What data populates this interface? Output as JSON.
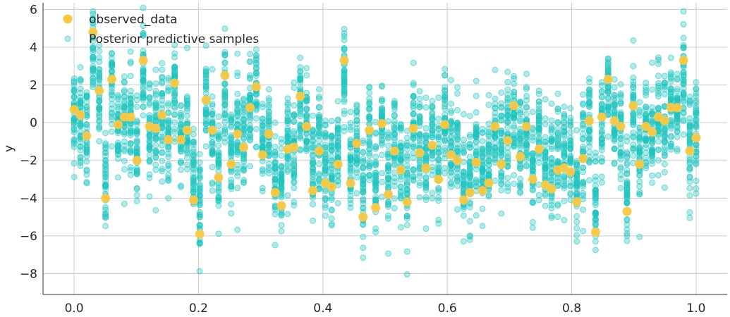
{
  "chart_data": {
    "type": "scatter",
    "title": "",
    "xlabel": "",
    "ylabel": "y",
    "xlim": [
      -0.05,
      1.05
    ],
    "ylim": [
      -9.1,
      6.35
    ],
    "xticks": [
      0.0,
      0.2,
      0.4,
      0.6,
      0.8,
      1.0
    ],
    "xtick_labels": [
      "0.0",
      "0.2",
      "0.4",
      "0.6",
      "0.8",
      "1.0"
    ],
    "yticks": [
      -8,
      -6,
      -4,
      -2,
      0,
      2,
      4,
      6
    ],
    "ytick_labels": [
      "−8",
      "−6",
      "−4",
      "−2",
      "0",
      "2",
      "4",
      "6"
    ],
    "grid": true,
    "legend": {
      "placement": "top-left",
      "entries": [
        "observed_data",
        "Posterior predictive samples"
      ]
    },
    "colors": {
      "observed": "#f9c845",
      "posterior": "#1fc4c0"
    },
    "observed": {
      "name": "observed_data",
      "x": [
        0.0,
        0.0101,
        0.0202,
        0.0303,
        0.0404,
        0.0505,
        0.0606,
        0.0707,
        0.0808,
        0.0909,
        0.101,
        0.1111,
        0.1212,
        0.1313,
        0.1414,
        0.1515,
        0.1616,
        0.1717,
        0.1818,
        0.1919,
        0.202,
        0.2121,
        0.2222,
        0.2323,
        0.2424,
        0.2525,
        0.2626,
        0.2727,
        0.2828,
        0.2929,
        0.303,
        0.3131,
        0.3232,
        0.3333,
        0.3434,
        0.3535,
        0.3636,
        0.3737,
        0.3838,
        0.3939,
        0.404,
        0.4141,
        0.4242,
        0.4343,
        0.4444,
        0.4545,
        0.4646,
        0.4747,
        0.4848,
        0.4949,
        0.5051,
        0.5152,
        0.5253,
        0.5354,
        0.5455,
        0.5556,
        0.5657,
        0.5758,
        0.5859,
        0.596,
        0.6061,
        0.6162,
        0.6263,
        0.6364,
        0.6465,
        0.6566,
        0.6667,
        0.6768,
        0.6869,
        0.697,
        0.7071,
        0.7172,
        0.7273,
        0.7374,
        0.7475,
        0.7576,
        0.7677,
        0.7778,
        0.7879,
        0.798,
        0.8081,
        0.8182,
        0.8283,
        0.8384,
        0.8485,
        0.8586,
        0.8687,
        0.8788,
        0.8889,
        0.899,
        0.9091,
        0.9192,
        0.9293,
        0.9394,
        0.9495,
        0.9596,
        0.9697,
        0.9798,
        0.9899,
        1.0
      ],
      "y": [
        0.7,
        0.4,
        -0.7,
        4.8,
        1.7,
        -4.0,
        2.3,
        -0.1,
        0.3,
        0.3,
        -2.0,
        3.3,
        -0.2,
        -0.3,
        0.4,
        -0.9,
        2.1,
        -0.9,
        -0.4,
        -4.1,
        -5.9,
        1.2,
        -0.4,
        -2.9,
        2.5,
        -2.2,
        -0.6,
        -1.3,
        0.8,
        1.9,
        -1.7,
        -0.6,
        -3.7,
        -4.4,
        -1.4,
        -1.3,
        1.4,
        -0.2,
        -3.6,
        -1.5,
        -3.2,
        -3.4,
        -2.2,
        3.3,
        -3.2,
        -1.1,
        -5.0,
        -0.4,
        -4.5,
        -0.05,
        -3.8,
        -1.5,
        -2.5,
        -4.2,
        -0.3,
        -1.6,
        -2.4,
        -1.2,
        -3.0,
        -0.1,
        -1.7,
        -2.0,
        -4.1,
        -3.7,
        -2.1,
        -3.6,
        -3.2,
        -0.2,
        -2.2,
        -0.95,
        0.9,
        -1.8,
        -0.2,
        -3.0,
        -1.4,
        -3.3,
        -3.5,
        -2.5,
        -2.4,
        -2.6,
        -4.2,
        -1.9,
        0.1,
        -5.8,
        0.3,
        2.3,
        0.1,
        -0.2,
        -4.7,
        0.9,
        -2.2,
        -0.2,
        -0.5,
        0.3,
        0.1,
        0.8,
        0.8,
        3.3,
        -1.5,
        -0.8
      ]
    },
    "posterior": {
      "name": "Posterior predictive samples",
      "samples_per_x": 40,
      "spread_sd": 1.0
    }
  }
}
